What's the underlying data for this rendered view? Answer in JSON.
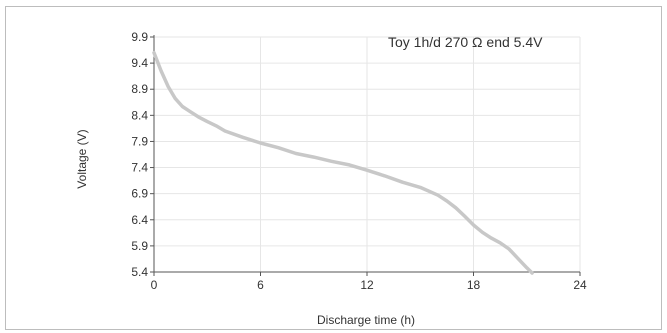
{
  "chart_data": {
    "type": "line",
    "title": "",
    "annotation": "Toy 1h/d 270 Ω end 5.4V",
    "xlabel": "Discharge time (h)",
    "ylabel": "Voltage (V)",
    "xlim": [
      0,
      24
    ],
    "ylim": [
      5.4,
      9.9
    ],
    "x_ticks": [
      "0",
      "6",
      "12",
      "18",
      "24"
    ],
    "y_ticks": [
      "5.4",
      "5.9",
      "6.4",
      "6.9",
      "7.4",
      "7.9",
      "8.4",
      "8.9",
      "9.4",
      "9.9"
    ],
    "grid": true,
    "legend": "none",
    "colors": {
      "line": "#c8c8c8",
      "grid": "#e6e6e6",
      "axis": "#555555"
    },
    "series": [
      {
        "x": [
          0,
          0.4,
          0.8,
          1.2,
          1.6,
          2.0,
          2.5,
          3.0,
          3.5,
          4.0,
          5.0,
          6.0,
          7.0,
          8.0,
          9.0,
          10.0,
          11.0,
          12.0,
          13.0,
          14.0,
          15.0,
          16.0,
          16.5,
          17.0,
          17.5,
          18.0,
          18.5,
          19.0,
          19.5,
          20.0,
          20.5,
          21.0,
          21.3
        ],
        "y": [
          9.6,
          9.25,
          8.95,
          8.72,
          8.57,
          8.48,
          8.37,
          8.28,
          8.2,
          8.1,
          7.98,
          7.87,
          7.78,
          7.67,
          7.6,
          7.52,
          7.45,
          7.35,
          7.24,
          7.12,
          7.02,
          6.87,
          6.76,
          6.63,
          6.47,
          6.3,
          6.16,
          6.05,
          5.96,
          5.84,
          5.66,
          5.48,
          5.38
        ]
      }
    ]
  }
}
